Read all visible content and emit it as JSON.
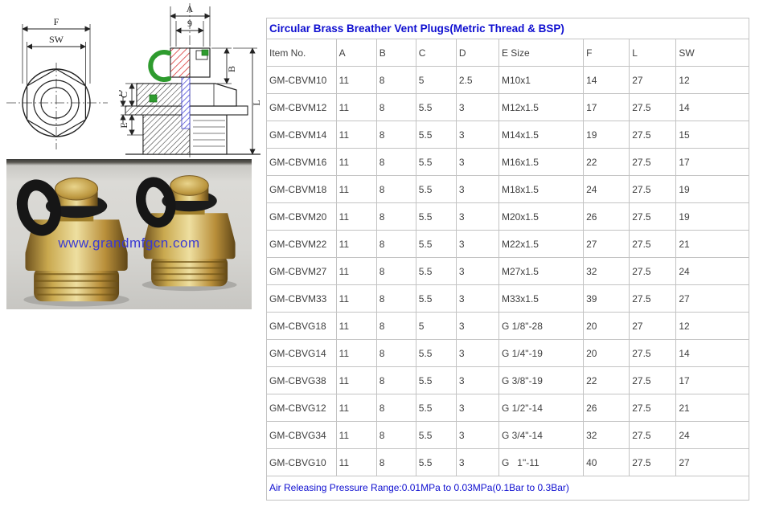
{
  "spec_table": {
    "title": "Circular Brass Breather Vent Plugs(Metric Thread & BSP)",
    "columns": [
      "Item No.",
      "A",
      "B",
      "C",
      "D",
      "E Size",
      "F",
      "L",
      "SW"
    ],
    "rows": [
      [
        "GM-CBVM10",
        "11",
        "8",
        "5",
        "2.5",
        "M10x1",
        "14",
        "27",
        "12"
      ],
      [
        "GM-CBVM12",
        "11",
        "8",
        "5.5",
        "3",
        "M12x1.5",
        "17",
        "27.5",
        "14"
      ],
      [
        "GM-CBVM14",
        "11",
        "8",
        "5.5",
        "3",
        "M14x1.5",
        "19",
        "27.5",
        "15"
      ],
      [
        "GM-CBVM16",
        "11",
        "8",
        "5.5",
        "3",
        "M16x1.5",
        "22",
        "27.5",
        "17"
      ],
      [
        "GM-CBVM18",
        "11",
        "8",
        "5.5",
        "3",
        "M18x1.5",
        "24",
        "27.5",
        "19"
      ],
      [
        "GM-CBVM20",
        "11",
        "8",
        "5.5",
        "3",
        "M20x1.5",
        "26",
        "27.5",
        "19"
      ],
      [
        "GM-CBVM22",
        "11",
        "8",
        "5.5",
        "3",
        "M22x1.5",
        "27",
        "27.5",
        "21"
      ],
      [
        "GM-CBVM27",
        "11",
        "8",
        "5.5",
        "3",
        "M27x1.5",
        "32",
        "27.5",
        "24"
      ],
      [
        "GM-CBVM33",
        "11",
        "8",
        "5.5",
        "3",
        "M33x1.5",
        "39",
        "27.5",
        "27"
      ],
      [
        "GM-CBVG18",
        "11",
        "8",
        "5",
        "3",
        "G 1/8\"-28",
        "20",
        "27",
        "12"
      ],
      [
        "GM-CBVG14",
        "11",
        "8",
        "5.5",
        "3",
        "G 1/4\"-19",
        "20",
        "27.5",
        "14"
      ],
      [
        "GM-CBVG38",
        "11",
        "8",
        "5.5",
        "3",
        "G 3/8\"-19",
        "22",
        "27.5",
        "17"
      ],
      [
        "GM-CBVG12",
        "11",
        "8",
        "5.5",
        "3",
        "G 1/2\"-14",
        "26",
        "27.5",
        "21"
      ],
      [
        "GM-CBVG34",
        "11",
        "8",
        "5.5",
        "3",
        "G 3/4\"-14",
        "32",
        "27.5",
        "24"
      ],
      [
        "GM-CBVG10",
        "11",
        "8",
        "5.5",
        "3",
        "G   1\"-11",
        "40",
        "27.5",
        "27"
      ]
    ],
    "footer": "Air Releasing Pressure Range:0.01MPa to 0.03MPa(0.1Bar to 0.3Bar)"
  },
  "drawings": {
    "front_view": {
      "dim_f": "F",
      "dim_sw": "SW"
    },
    "section_view": {
      "dim_a": "A",
      "dim_9": "9",
      "dim_b": "B",
      "dim_c": "C",
      "dim_d": "D",
      "dim_e": "E",
      "dim_l": "L"
    }
  },
  "photo": {
    "watermark": "www.grandmfgcn.com"
  },
  "colors": {
    "title_blue": "#0f0fd0",
    "grid_gray": "#c3c3c3",
    "cell_text": "#3f3f3f",
    "watermark_blue": "#3a3ad2",
    "brass": "#c9a84e",
    "hatch_red": "#e05a5a",
    "hatch_blue": "#4b4bd8",
    "clip_green": "#2e9b2e"
  }
}
